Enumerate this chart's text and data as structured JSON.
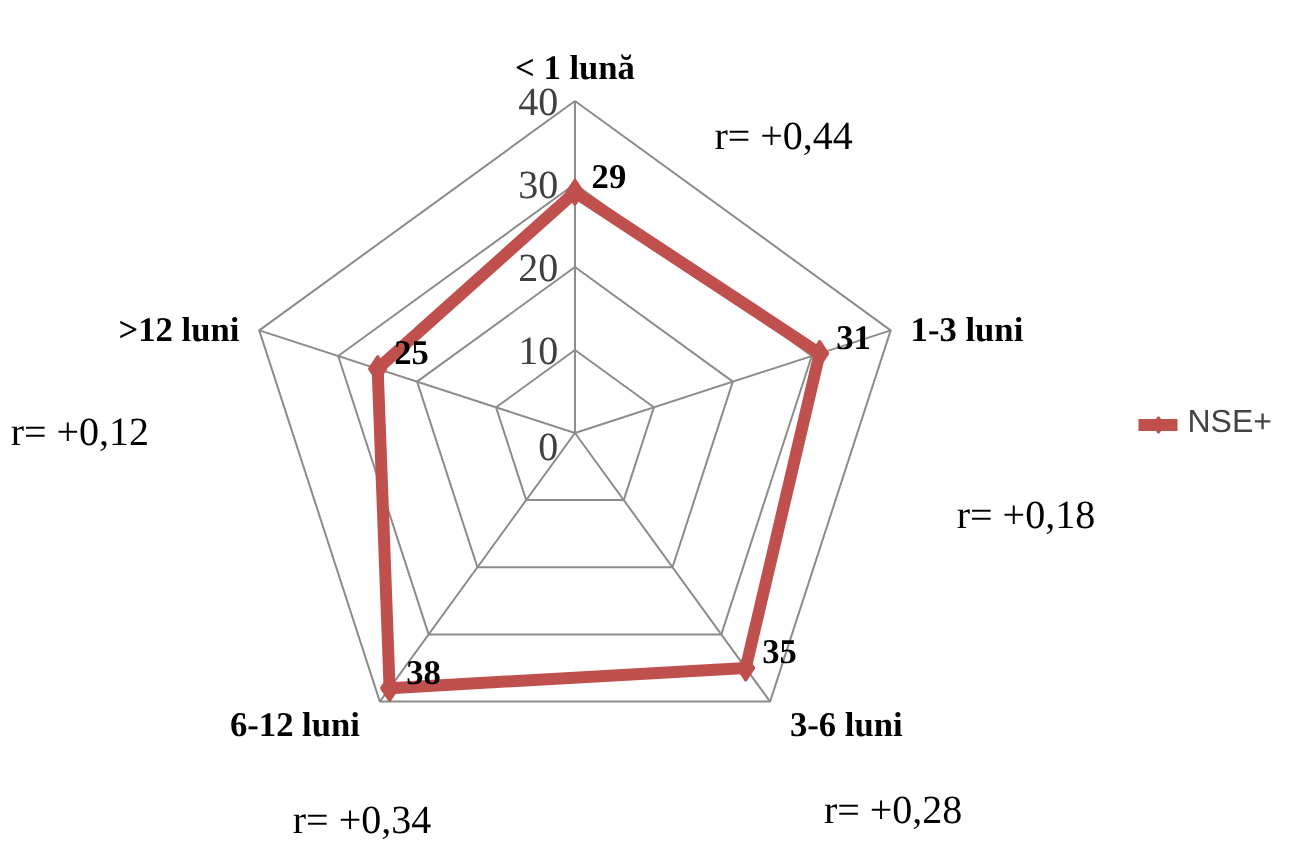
{
  "chart_data": {
    "type": "radar",
    "categories": [
      "< 1 lună",
      "1-3 luni",
      "3-6 luni",
      "6-12 luni",
      ">12 luni"
    ],
    "series": [
      {
        "name": "NSE+",
        "color": "#c0504d",
        "values": [
          29,
          31,
          35,
          38,
          25
        ]
      }
    ],
    "ylim": [
      0,
      40
    ],
    "yticks": [
      0,
      10,
      20,
      30,
      40
    ],
    "data_labels": true,
    "legend": "right",
    "marker": "diamond",
    "line_style": "solid",
    "grid": true,
    "annotations": [
      "r= +0,44",
      "r= +0,18",
      "r= +0,28",
      "r= +0,34",
      "r= +0,12"
    ]
  }
}
